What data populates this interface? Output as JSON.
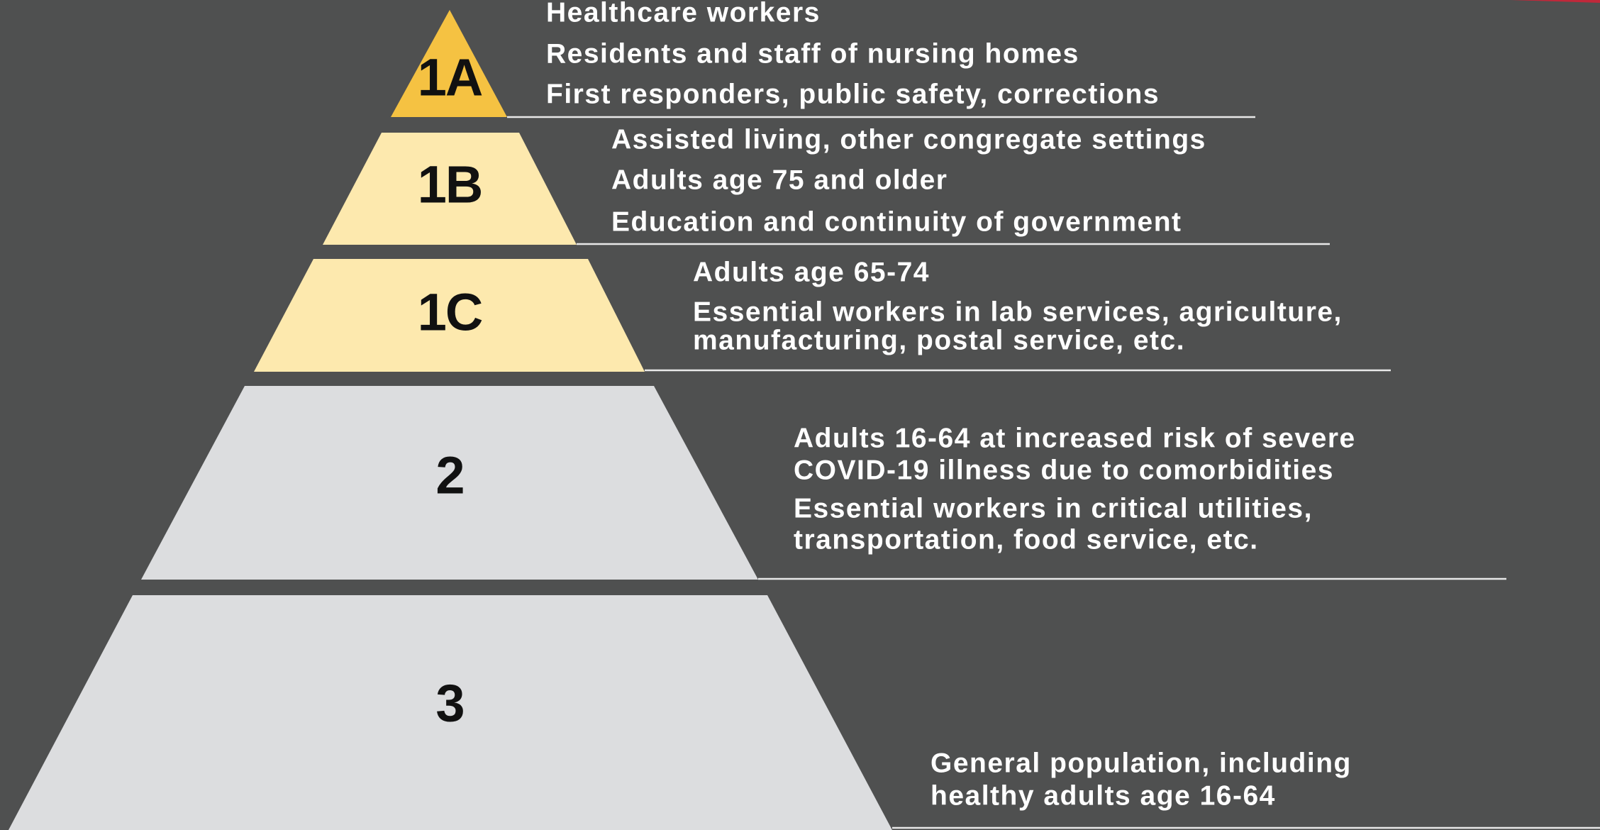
{
  "tiers": [
    {
      "label": "1A",
      "items": [
        [
          "Healthcare workers"
        ],
        [
          "Residents and staff of nursing homes"
        ],
        [
          "First responders, public safety, corrections"
        ]
      ]
    },
    {
      "label": "1B",
      "items": [
        [
          "Assisted living, other congregate settings"
        ],
        [
          "Adults age 75 and older"
        ],
        [
          "Education and continuity of government"
        ]
      ]
    },
    {
      "label": "1C",
      "items": [
        [
          "Adults age 65-74"
        ],
        [
          "Essential workers in lab services, agriculture,",
          "manufacturing, postal service, etc."
        ]
      ]
    },
    {
      "label": "2",
      "items": [
        [
          "Adults 16-64 at increased risk of severe",
          "COVID-19 illness due to comorbidities"
        ],
        [
          "Essential workers in critical utilities,",
          "transportation, food service, etc."
        ]
      ]
    },
    {
      "label": "3",
      "items": [
        [
          "General population, including",
          "healthy adults age 16-64"
        ]
      ]
    }
  ]
}
